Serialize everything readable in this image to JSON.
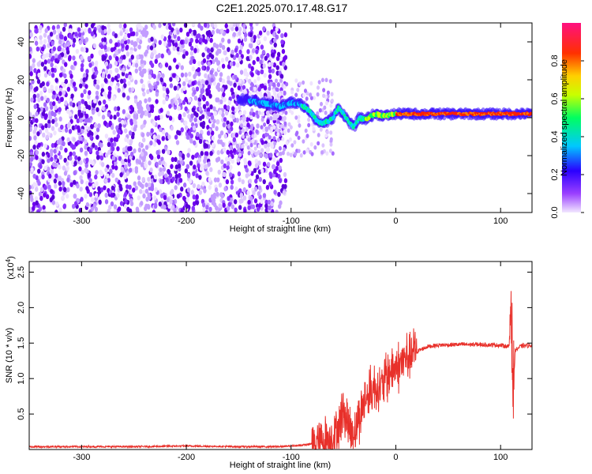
{
  "figure_title": "C2E1.2025.070.17.48.G17",
  "chart_data": [
    {
      "type": "heatmap",
      "title": "",
      "xlabel": "Height of straight line (km)",
      "ylabel": "Frequency (Hz)",
      "xlim": [
        -350,
        130
      ],
      "ylim": [
        -50,
        50
      ],
      "x_ticks": [
        -300,
        -200,
        -100,
        0,
        100
      ],
      "y_ticks": [
        -40,
        -20,
        0,
        20,
        40
      ],
      "colorbar": {
        "label": "Normalized spectral amplitude",
        "range": [
          0,
          1
        ],
        "ticks": [
          0.0,
          0.2,
          0.4,
          0.6,
          0.8
        ],
        "colormap": [
          "#f2e8ff",
          "#7a00ff",
          "#0000ff",
          "#00e5ff",
          "#00ff40",
          "#ffff00",
          "#ff8c00",
          "#ff0000",
          "#ff00a0"
        ]
      },
      "features": {
        "noise_region_x": [
          -350,
          -105
        ],
        "line_track": {
          "x": [
            -150,
            -130,
            -110,
            -100,
            -90,
            -80,
            -75,
            -70,
            -65,
            -60,
            -55,
            -50,
            -45,
            -40,
            -35,
            -30,
            -20,
            -10,
            0,
            20,
            50,
            80,
            100,
            110,
            120,
            130
          ],
          "y": [
            10,
            8,
            6,
            8,
            7,
            2,
            -2,
            -3,
            -2,
            0,
            5,
            2,
            -2,
            -5,
            0,
            -1,
            2,
            1,
            2,
            2,
            2,
            2,
            2,
            2,
            2,
            2
          ]
        }
      }
    },
    {
      "type": "line",
      "title": "",
      "xlabel": "Height of straight line (km)",
      "ylabel": "SNR (10 * v/v)",
      "y_exponent_label": "(x10",
      "y_exponent": "4",
      "xlim": [
        -350,
        130
      ],
      "ylim": [
        0,
        2.65
      ],
      "x_ticks": [
        -300,
        -200,
        -100,
        0,
        100
      ],
      "y_ticks": [
        0.5,
        1.0,
        1.5,
        2.0,
        2.5
      ],
      "series": [
        {
          "color": "#e8302a",
          "x": [
            -350,
            -300,
            -250,
            -200,
            -150,
            -110,
            -100,
            -90,
            -80,
            -70,
            -60,
            -55,
            -50,
            -45,
            -40,
            -35,
            -30,
            -25,
            -20,
            -15,
            -10,
            -5,
            0,
            5,
            10,
            20,
            30,
            40,
            60,
            80,
            100,
            108,
            110,
            112,
            114,
            120,
            130
          ],
          "y": [
            0.04,
            0.04,
            0.04,
            0.05,
            0.04,
            0.04,
            0.05,
            0.06,
            0.08,
            0.12,
            0.18,
            0.3,
            0.6,
            0.3,
            0.25,
            0.45,
            0.7,
            0.8,
            0.9,
            0.85,
            1.0,
            1.1,
            1.15,
            1.2,
            1.3,
            1.38,
            1.45,
            1.47,
            1.48,
            1.48,
            1.47,
            1.45,
            2.2,
            0.8,
            1.4,
            1.46,
            1.47
          ]
        }
      ]
    }
  ]
}
